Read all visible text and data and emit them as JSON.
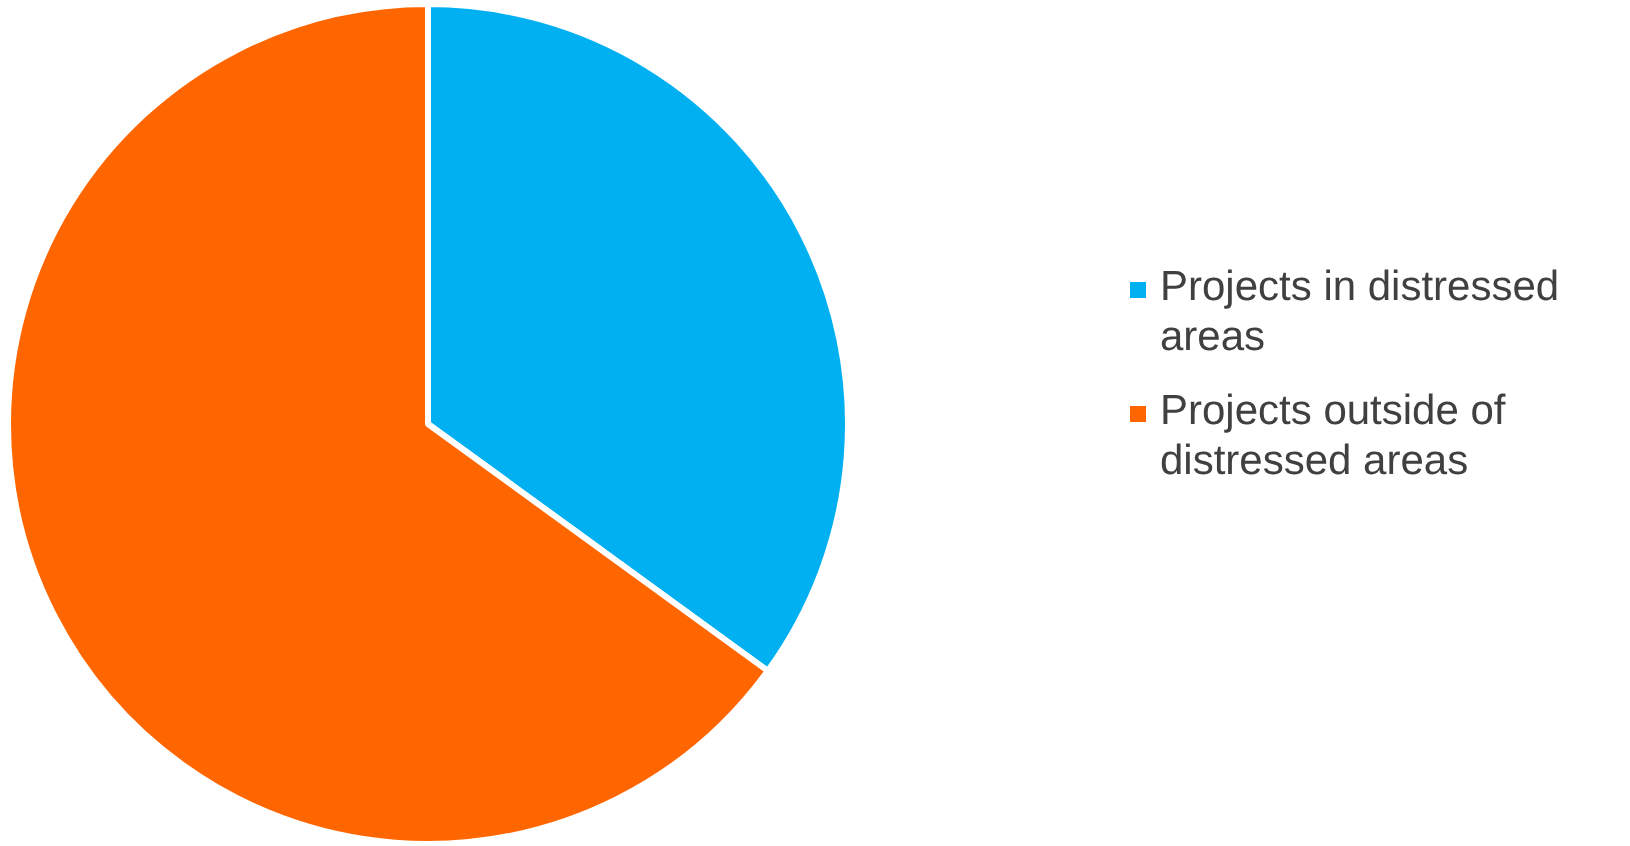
{
  "chart_data": {
    "type": "pie",
    "categories": [
      "Projects in distressed areas",
      "Projects outside of distressed areas"
    ],
    "values": [
      35,
      65
    ],
    "colors": [
      "#00b0f0",
      "#ff6600"
    ],
    "legend": "right"
  }
}
